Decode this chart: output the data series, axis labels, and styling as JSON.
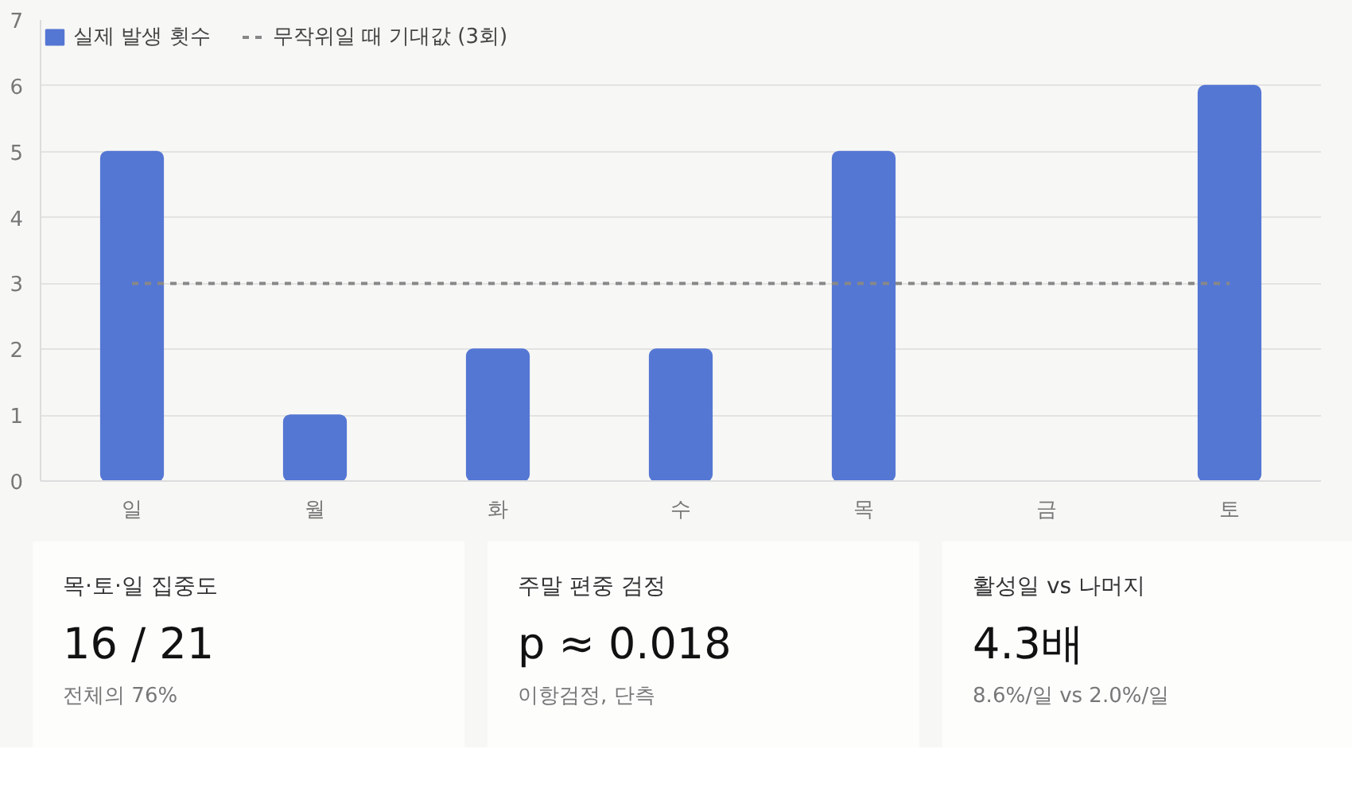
{
  "chart_data": [
    {
      "type": "bar",
      "categories": [
        "일",
        "월",
        "화",
        "수",
        "목",
        "금",
        "토"
      ],
      "ylim": [
        0,
        7
      ],
      "yticks": [
        0,
        1,
        2,
        3,
        4,
        5,
        6,
        7
      ],
      "grid": "y",
      "legend": "top left",
      "series": [
        {
          "name": "실제 발생 횟수",
          "type": "bar",
          "color": "#5577d4",
          "values": [
            5,
            1,
            2,
            2,
            5,
            0,
            6
          ]
        },
        {
          "name": "무작위일 때 기대값 (3회)",
          "type": "line",
          "color": "#888888",
          "line_style": "dashed",
          "marker": "none",
          "values": [
            3,
            3,
            3,
            3,
            3,
            3,
            3
          ]
        }
      ]
    },
    {
      "type": "other",
      "title": "목·토·일 집중도",
      "subtitle": "16 / 21",
      "annotations": [
        "전체의 76%"
      ]
    },
    {
      "type": "other",
      "title": "주말 편중 검정",
      "subtitle": "p ≈ 0.018",
      "annotations": [
        "이항검정, 단측"
      ]
    },
    {
      "type": "other",
      "title": "활성일 vs 나머지",
      "subtitle": "4.3배",
      "annotations": [
        "8.6%/일 vs 2.0%/일"
      ]
    }
  ]
}
